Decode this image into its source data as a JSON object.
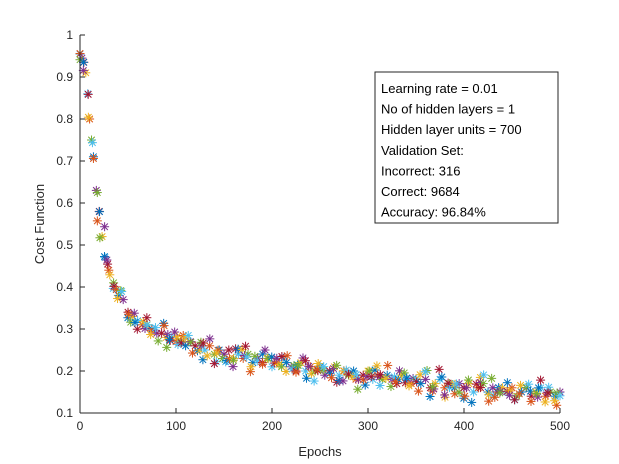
{
  "chart_data": {
    "type": "scatter",
    "title": "",
    "xlabel": "Epochs",
    "ylabel": "Cost Function",
    "xlim": [
      0,
      500
    ],
    "ylim": [
      0.1,
      1
    ],
    "xticks": [
      0,
      100,
      200,
      300,
      400,
      500
    ],
    "yticks": [
      0.1,
      0.2,
      0.3,
      0.4,
      0.5,
      0.6,
      0.7,
      0.8,
      0.9,
      1
    ],
    "x_tick_labels": [
      "0",
      "100",
      "200",
      "300",
      "400",
      "500"
    ],
    "y_tick_labels": [
      "0.1",
      "0.2",
      "0.3",
      "0.4",
      "0.5",
      "0.6",
      "0.7",
      "0.8",
      "0.9",
      "1"
    ],
    "grid": false,
    "marker": "asterisk",
    "marker_colors": [
      "#0072bd",
      "#d95319",
      "#edb120",
      "#7e2f8e",
      "#77ac30",
      "#4dbeee",
      "#a2142f"
    ],
    "epoch_values": [
      0,
      2,
      4,
      6,
      8,
      10,
      12,
      14,
      17,
      20,
      23,
      26,
      30,
      35,
      40,
      45,
      50,
      55,
      60,
      65,
      70,
      75,
      80,
      85,
      90,
      95,
      100,
      105,
      110,
      115,
      120,
      125,
      130,
      135,
      140,
      145,
      150,
      155,
      160,
      165,
      170,
      175,
      180,
      185,
      190,
      195,
      200,
      205,
      210,
      215,
      220,
      225,
      230,
      235,
      240,
      245,
      250,
      255,
      260,
      265,
      270,
      275,
      280,
      285,
      290,
      295,
      300,
      305,
      310,
      315,
      320,
      325,
      330,
      335,
      340,
      345,
      350,
      355,
      360,
      365,
      370,
      375,
      380,
      385,
      390,
      395,
      400,
      405,
      410,
      415,
      420,
      425,
      430,
      435,
      440,
      445,
      450,
      455,
      460,
      465,
      470,
      475,
      480,
      485,
      490,
      495,
      500
    ],
    "cost_values": [
      0.955,
      0.945,
      0.935,
      0.91,
      0.86,
      0.8,
      0.75,
      0.71,
      0.63,
      0.58,
      0.52,
      0.47,
      0.44,
      0.41,
      0.38,
      0.37,
      0.34,
      0.33,
      0.32,
      0.31,
      0.31,
      0.3,
      0.29,
      0.29,
      0.28,
      0.28,
      0.27,
      0.27,
      0.26,
      0.27,
      0.26,
      0.25,
      0.25,
      0.26,
      0.24,
      0.25,
      0.24,
      0.25,
      0.23,
      0.24,
      0.23,
      0.24,
      0.22,
      0.23,
      0.22,
      0.23,
      0.21,
      0.22,
      0.21,
      0.22,
      0.21,
      0.2,
      0.22,
      0.2,
      0.21,
      0.2,
      0.21,
      0.19,
      0.2,
      0.21,
      0.19,
      0.2,
      0.19,
      0.2,
      0.18,
      0.19,
      0.2,
      0.18,
      0.19,
      0.18,
      0.19,
      0.18,
      0.17,
      0.19,
      0.18,
      0.17,
      0.18,
      0.17,
      0.18,
      0.16,
      0.17,
      0.18,
      0.16,
      0.17,
      0.16,
      0.17,
      0.16,
      0.17,
      0.15,
      0.16,
      0.17,
      0.15,
      0.16,
      0.15,
      0.16,
      0.15,
      0.16,
      0.14,
      0.15,
      0.16,
      0.14,
      0.15,
      0.16,
      0.14,
      0.15,
      0.14,
      0.15
    ]
  },
  "legend": {
    "lines": [
      "Learning rate = 0.01",
      "No of hidden layers = 1",
      "Hidden layer units = 700",
      "Validation Set:",
      "Incorrect: 316",
      "Correct: 9684",
      "Accuracy: 96.84%"
    ],
    "placement": "top-right"
  }
}
